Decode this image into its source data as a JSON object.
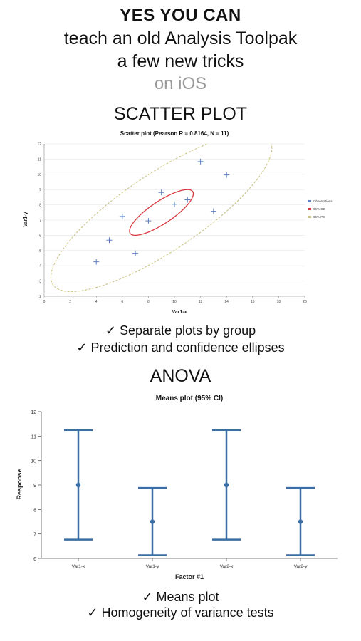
{
  "header": {
    "title": "YES YOU CAN",
    "line1": "teach an old Analysis Toolpak",
    "line2": "a few new tricks",
    "platform": "on iOS"
  },
  "sections": {
    "scatter": {
      "heading": "SCATTER PLOT",
      "features": [
        "✓ Separate plots by group",
        "✓ Prediction and confidence ellipses"
      ]
    },
    "anova": {
      "heading": "ANOVA",
      "features": [
        "✓ Means plot",
        "✓ Homogeneity of variance tests"
      ]
    }
  },
  "colors": {
    "observation": "#5b7fc2",
    "ci_ellipse": "#d9363e",
    "pe_ellipse": "#c7c07a",
    "means_line": "#3a6ea5"
  },
  "chart_data": [
    {
      "type": "scatter",
      "title": "Scatter plot (Pearson R = 0.8164, N = 11)",
      "xlabel": "Var1-x",
      "ylabel": "Var1-y",
      "xlim": [
        0,
        20
      ],
      "ylim": [
        2,
        12
      ],
      "xticks": [
        0,
        2,
        4,
        6,
        8,
        10,
        12,
        14,
        16,
        18,
        20
      ],
      "yticks": [
        2,
        3,
        4,
        5,
        6,
        7,
        8,
        9,
        10,
        11,
        12
      ],
      "grid": true,
      "legend_position": "right",
      "series": [
        {
          "name": "Observations",
          "x": [
            4,
            5,
            6,
            7,
            8,
            9,
            10,
            11,
            12,
            13,
            14
          ],
          "y": [
            4.26,
            5.68,
            7.24,
            4.82,
            6.95,
            8.81,
            8.04,
            8.33,
            10.84,
            7.58,
            9.96
          ]
        },
        {
          "name": "95% CE"
        },
        {
          "name": "95% PE"
        }
      ]
    },
    {
      "type": "means_plot",
      "title": "Means plot (95% CI)",
      "xlabel": "Factor #1",
      "ylabel": "Response",
      "ylim": [
        6,
        12
      ],
      "yticks": [
        6,
        7,
        8,
        9,
        10,
        11,
        12
      ],
      "categories": [
        "Var1-x",
        "Var1-y",
        "Var2-x",
        "Var2-y"
      ],
      "means": [
        9,
        7.5,
        9,
        7.5
      ],
      "ci_upper": [
        11.25,
        8.88,
        11.25,
        8.88
      ],
      "ci_lower": [
        6.77,
        6.13,
        6.77,
        6.13
      ]
    }
  ]
}
